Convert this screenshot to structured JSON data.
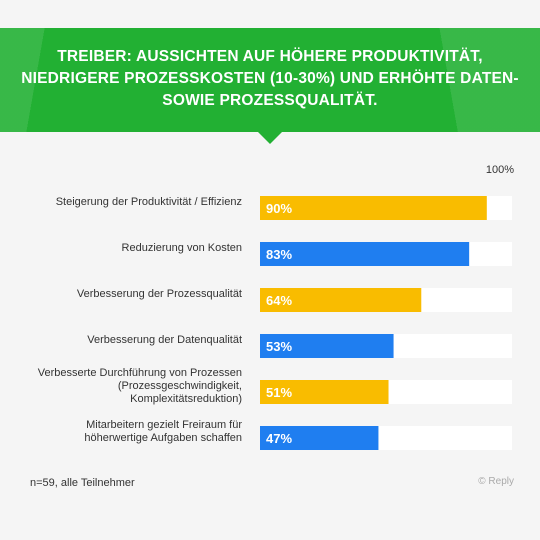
{
  "chart_data": {
    "type": "bar",
    "orientation": "horizontal",
    "title": "TREIBER: AUSSICHTEN AUF HÖHERE PRODUKTIVITÄT, NIEDRIGERE PROZESSKOSTEN (10-30%) UND ERHÖHTE DATEN- SOWIE PROZESSQUALITÄT.",
    "axis_max_label": "100%",
    "xlim": [
      0,
      100
    ],
    "categories": [
      "Steigerung der Produktivität / Effizienz",
      "Reduzierung von Kosten",
      "Verbesserung der Prozessqualität",
      "Verbesserung der Datenqualität",
      "Verbesserte Durchführung von Prozessen (Prozessgeschwindigkeit, Komplexitätsreduktion)",
      "Mitarbeitern gezielt Freiraum für höherwertige Aufgaben schaffen"
    ],
    "values": [
      90,
      83,
      64,
      53,
      51,
      47
    ],
    "value_labels": [
      "90%",
      "83%",
      "64%",
      "53%",
      "51%",
      "47%"
    ],
    "bar_colors": [
      "#f9bc00",
      "#1f7ef0",
      "#f9bc00",
      "#1f7ef0",
      "#f9bc00",
      "#1f7ef0"
    ],
    "track_color": "#ffffff",
    "grid": false,
    "legend": "none"
  },
  "colors": {
    "banner": "#22b033",
    "background": "#f5f5f5"
  },
  "footnote": "n=59, alle Teilnehmer",
  "copyright": "© Reply"
}
